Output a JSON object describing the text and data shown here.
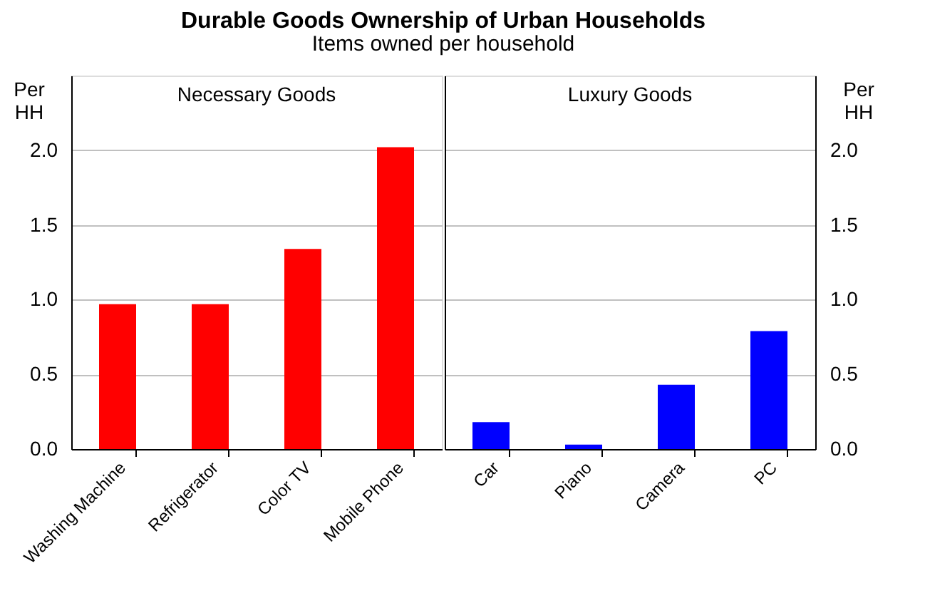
{
  "chart_data": [
    {
      "type": "bar",
      "title": "Durable Goods Ownership of Urban Households",
      "subtitle": "Items owned per household",
      "ylabel": "Per HH",
      "categories": [
        "Washing Machine",
        "Refrigerator",
        "Color TV",
        "Mobile Phone"
      ],
      "values": [
        0.97,
        0.97,
        1.34,
        2.02
      ],
      "color": "#ff0000",
      "ylim": [
        0,
        2.5
      ],
      "yticks": [
        {
          "value": 0,
          "label": "0.0"
        },
        {
          "value": 0.5,
          "label": "0.5"
        },
        {
          "value": 1,
          "label": "1.0"
        },
        {
          "value": 1.5,
          "label": "1.5"
        },
        {
          "value": 2,
          "label": "2.0"
        }
      ],
      "annotations": [
        "Necessary Goods"
      ],
      "grid": "y"
    },
    {
      "type": "bar",
      "y2label": "Per HH",
      "categories": [
        "Car",
        "Piano",
        "Camera",
        "PC"
      ],
      "series": [
        {
          "color": "#0000ff",
          "axis": "y2",
          "values": [
            0.18,
            0.03,
            0.43,
            0.79
          ]
        }
      ],
      "y2lim": [
        0,
        2.5
      ],
      "y2ticks": [
        {
          "value": 0,
          "label": "0.0"
        },
        {
          "value": 0.5,
          "label": "0.5"
        },
        {
          "value": 1,
          "label": "1.0"
        },
        {
          "value": 1.5,
          "label": "1.5"
        },
        {
          "value": 2,
          "label": "2.0"
        }
      ],
      "annotations": [
        "Luxury Goods"
      ],
      "grid": "y"
    }
  ]
}
